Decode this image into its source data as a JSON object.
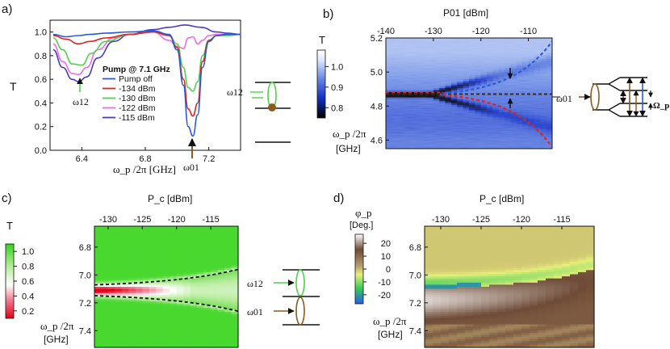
{
  "figure": {
    "panel_labels": [
      "a)",
      "b)",
      "c)",
      "d)"
    ]
  },
  "chart_data": [
    {
      "id": "a",
      "type": "line",
      "ylabel": "T",
      "xlabel": "ω_p /2π [GHz]",
      "xlim": [
        6.2,
        7.4
      ],
      "ylim": [
        0.0,
        1.1
      ],
      "xticks": [
        6.4,
        6.8,
        7.2
      ],
      "yticks": [
        0.0,
        0.2,
        0.4,
        0.6,
        0.8,
        1.0
      ],
      "legend_title": "Pump @ 7.1 GHz",
      "series": [
        {
          "name": "Pump off",
          "color": "#2a5bd7",
          "x": [
            6.22,
            6.3,
            6.38,
            6.45,
            6.55,
            6.7,
            6.85,
            6.95,
            7.0,
            7.04,
            7.07,
            7.1,
            7.13,
            7.16,
            7.2,
            7.25,
            7.32,
            7.4
          ],
          "values": [
            0.98,
            0.96,
            0.97,
            0.98,
            0.99,
            1.0,
            1.01,
            0.98,
            0.85,
            0.55,
            0.2,
            0.12,
            0.3,
            0.7,
            0.92,
            0.97,
            0.98,
            0.98
          ]
        },
        {
          "name": "-134 dBm",
          "color": "#e0231c",
          "x": [
            6.22,
            6.3,
            6.38,
            6.45,
            6.55,
            6.7,
            6.85,
            6.95,
            7.0,
            7.04,
            7.07,
            7.1,
            7.13,
            7.16,
            7.2,
            7.25,
            7.32,
            7.4
          ],
          "values": [
            0.97,
            0.94,
            0.9,
            0.92,
            0.95,
            0.98,
            1.0,
            0.97,
            0.87,
            0.6,
            0.35,
            0.29,
            0.4,
            0.75,
            0.93,
            0.97,
            0.98,
            0.98
          ]
        },
        {
          "name": "-130 dBm",
          "color": "#4fd14a",
          "x": [
            6.22,
            6.28,
            6.34,
            6.4,
            6.46,
            6.55,
            6.7,
            6.85,
            6.95,
            7.0,
            7.04,
            7.07,
            7.1,
            7.13,
            7.16,
            7.2,
            7.25,
            7.32,
            7.4
          ],
          "values": [
            0.95,
            0.85,
            0.73,
            0.72,
            0.82,
            0.92,
            0.98,
            1.0,
            0.97,
            0.9,
            0.7,
            0.53,
            0.5,
            0.58,
            0.8,
            0.93,
            0.97,
            0.97,
            0.98
          ]
        },
        {
          "name": "-122 dBm",
          "color": "#f26ae0",
          "x": [
            6.22,
            6.28,
            6.34,
            6.38,
            6.43,
            6.5,
            6.6,
            6.7,
            6.85,
            6.95,
            7.0,
            7.04,
            7.07,
            7.1,
            7.13,
            7.16,
            7.2,
            7.25,
            7.32,
            7.4
          ],
          "values": [
            0.9,
            0.75,
            0.65,
            0.64,
            0.7,
            0.85,
            0.95,
            0.98,
            1.0,
            0.93,
            0.88,
            0.86,
            0.95,
            0.96,
            0.9,
            0.93,
            0.97,
            0.98,
            0.98,
            0.98
          ]
        },
        {
          "name": "-115 dBm",
          "color": "#4b39c6",
          "x": [
            6.22,
            6.28,
            6.34,
            6.38,
            6.43,
            6.5,
            6.6,
            6.7,
            6.85,
            6.95,
            7.05,
            7.15,
            7.25,
            7.32,
            7.4
          ],
          "values": [
            0.85,
            0.7,
            0.6,
            0.58,
            0.62,
            0.78,
            0.92,
            0.98,
            1.02,
            1.04,
            1.06,
            1.04,
            1.0,
            0.99,
            0.98
          ]
        }
      ],
      "annotations": [
        "ω12",
        "ω01"
      ]
    },
    {
      "id": "b",
      "type": "heatmap",
      "title": "P01 [dBm]",
      "xlim": [
        -140,
        -105
      ],
      "xticks": [
        -140,
        -130,
        -120,
        -110
      ],
      "ylim": [
        4.55,
        5.2
      ],
      "yticks": [
        4.6,
        4.8,
        5.0,
        5.2
      ],
      "ylabel": "ω_p /2π",
      "ylabel_unit": "[GHz]",
      "colorbar_label": "T",
      "colorbar_ticks": [
        0.8,
        0.9,
        1.0
      ],
      "colorbar_range": [
        0.75,
        1.08
      ],
      "resonance": 4.87,
      "annotations": [
        "ω01",
        "Ω_p"
      ]
    },
    {
      "id": "c",
      "type": "heatmap",
      "title": "P_c [dBm]",
      "xlim": [
        -132,
        -111
      ],
      "xticks": [
        -130,
        -125,
        -120,
        -115
      ],
      "ylim": [
        6.65,
        7.52
      ],
      "yticks": [
        6.8,
        7.0,
        7.2,
        7.4
      ],
      "ylabel": "ω_p /2π",
      "ylabel_unit": "[GHz]",
      "colorbar_label": "T",
      "colorbar_ticks": [
        0.2,
        0.4,
        0.6,
        0.8,
        1.0
      ],
      "colorbar_range": [
        0.1,
        1.1
      ],
      "center": 7.11,
      "annotations": [
        "ω12",
        "ω01"
      ]
    },
    {
      "id": "d",
      "type": "heatmap",
      "title": "P_c [dBm]",
      "xlim": [
        -132,
        -111
      ],
      "xticks": [
        -130,
        -125,
        -120,
        -115
      ],
      "ylim": [
        6.65,
        7.52
      ],
      "yticks": [
        6.8,
        7.0,
        7.2,
        7.4
      ],
      "ylabel": "ω_p /2π",
      "ylabel_unit": "[GHz]",
      "colorbar_label": "φ_p",
      "colorbar_unit": "[Deg.]",
      "colorbar_ticks": [
        20,
        10,
        0,
        -10,
        -20
      ],
      "colorbar_range": [
        -27,
        27
      ]
    }
  ]
}
